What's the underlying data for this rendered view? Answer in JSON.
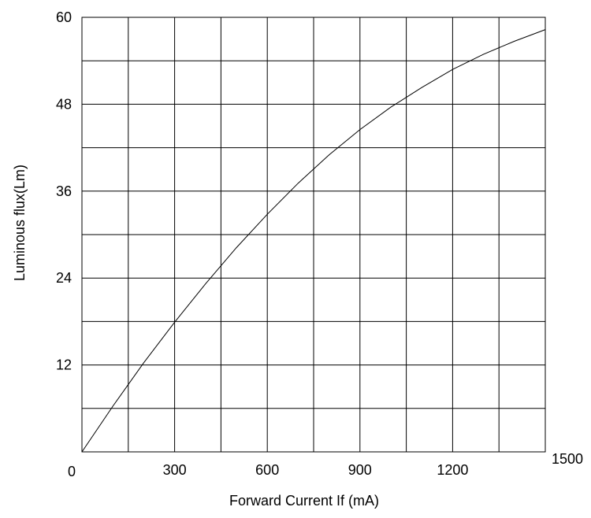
{
  "chart_data": {
    "type": "line",
    "xlabel": "Forward Current  If (mA)",
    "ylabel": "Luminous flux(Lm)",
    "xlim": [
      0,
      1500
    ],
    "ylim": [
      0,
      60
    ],
    "grid": true,
    "x_ticks": [
      {
        "value": 0,
        "label": "0"
      },
      {
        "value": 300,
        "label": "300"
      },
      {
        "value": 600,
        "label": "600"
      },
      {
        "value": 900,
        "label": "900"
      },
      {
        "value": 1200,
        "label": "1200"
      },
      {
        "value": 1500,
        "label": "1500"
      }
    ],
    "y_ticks": [
      {
        "value": 12,
        "label": "12"
      },
      {
        "value": 24,
        "label": "24"
      },
      {
        "value": 36,
        "label": "36"
      },
      {
        "value": 48,
        "label": "48"
      },
      {
        "value": 60,
        "label": "60"
      }
    ],
    "x_gridlines": [
      150,
      300,
      450,
      600,
      750,
      900,
      1050,
      1200,
      1350
    ],
    "y_gridlines": [
      6,
      12,
      18,
      24,
      30,
      36,
      42,
      48,
      54
    ],
    "series": [
      {
        "color": "#000000",
        "points": [
          {
            "x": 0,
            "y": 0
          },
          {
            "x": 100,
            "y": 6.3
          },
          {
            "x": 200,
            "y": 12.3
          },
          {
            "x": 300,
            "y": 17.9
          },
          {
            "x": 400,
            "y": 23.2
          },
          {
            "x": 500,
            "y": 28.2
          },
          {
            "x": 600,
            "y": 32.8
          },
          {
            "x": 700,
            "y": 37.1
          },
          {
            "x": 800,
            "y": 41.0
          },
          {
            "x": 900,
            "y": 44.5
          },
          {
            "x": 1000,
            "y": 47.6
          },
          {
            "x": 1100,
            "y": 50.3
          },
          {
            "x": 1200,
            "y": 52.8
          },
          {
            "x": 1300,
            "y": 54.9
          },
          {
            "x": 1400,
            "y": 56.7
          },
          {
            "x": 1500,
            "y": 58.3
          }
        ]
      }
    ]
  }
}
